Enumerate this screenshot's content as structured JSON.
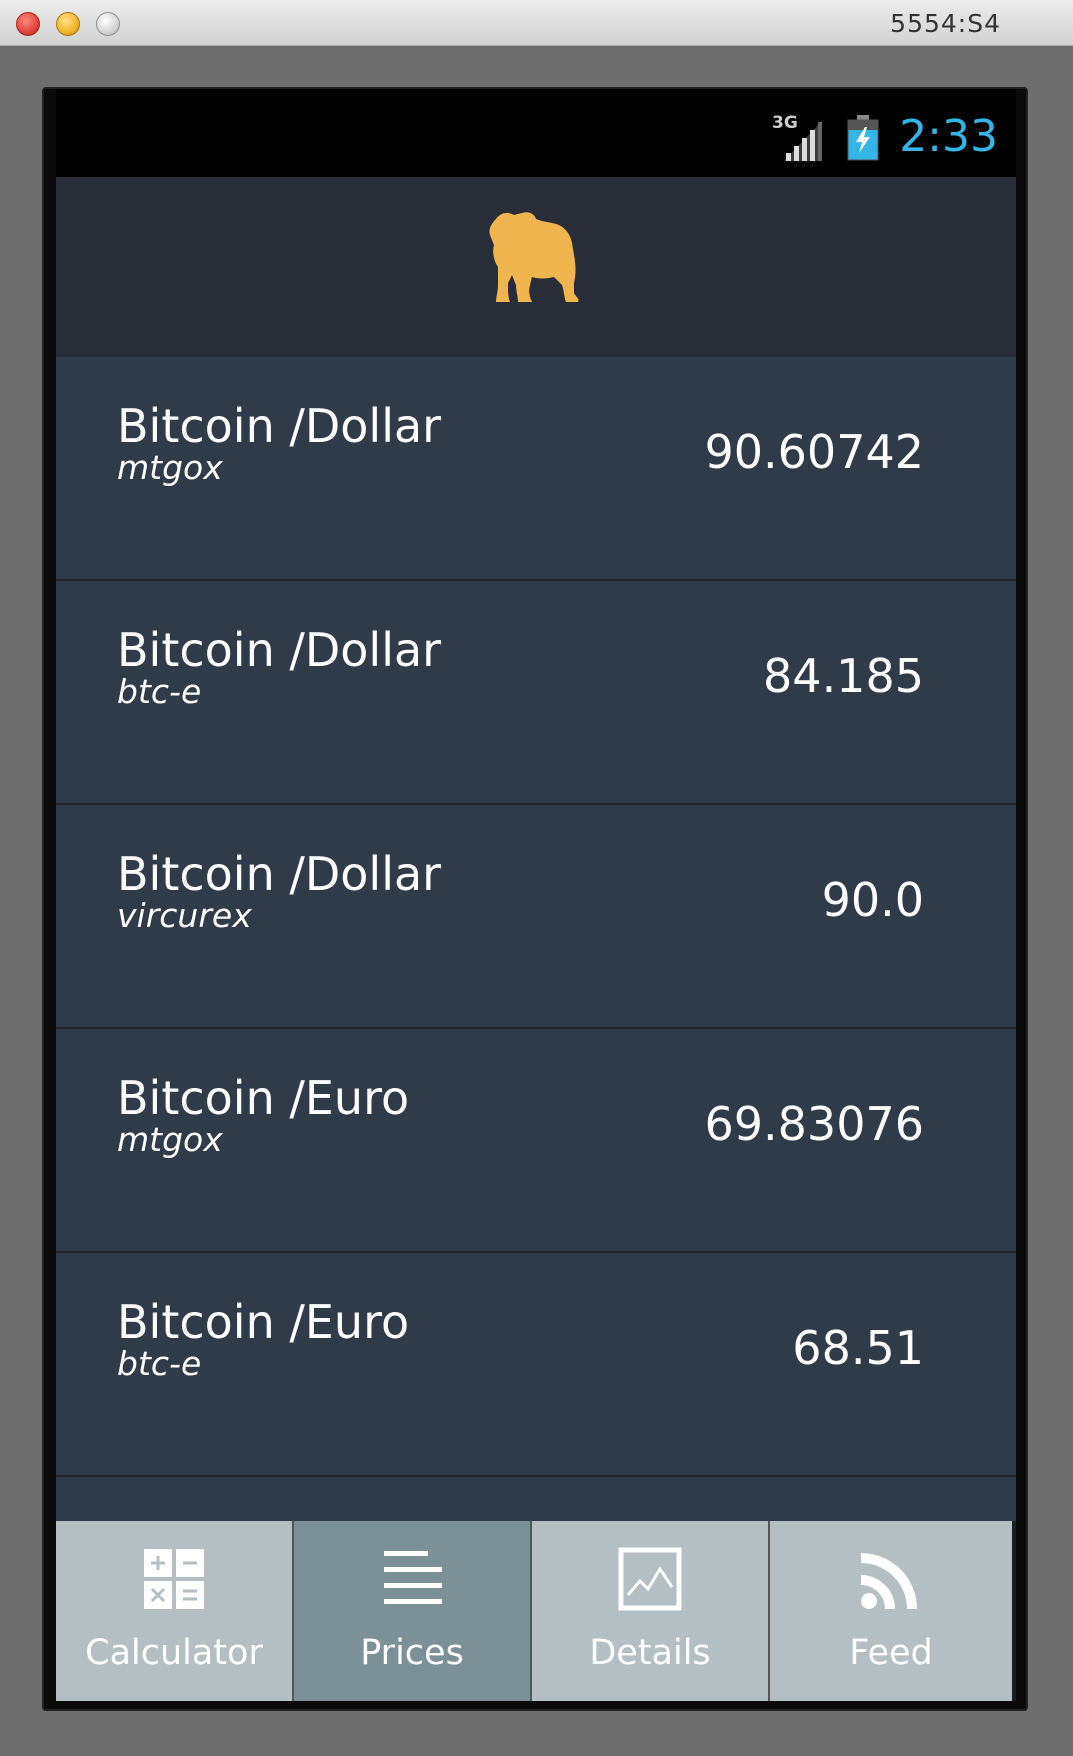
{
  "window": {
    "title": "5554:S4"
  },
  "status_bar": {
    "network": "3G",
    "clock": "2:33",
    "clock_color": "#33b5e5"
  },
  "action_bar": {
    "logo": "bulldog-icon",
    "logo_color": "#f0b54f"
  },
  "prices": [
    {
      "title": "Bitcoin /Dollar",
      "exchange": "mtgox",
      "price": "90.60742"
    },
    {
      "title": "Bitcoin /Dollar",
      "exchange": "btc-e",
      "price": "84.185"
    },
    {
      "title": "Bitcoin /Dollar",
      "exchange": "vircurex",
      "price": "90.0"
    },
    {
      "title": "Bitcoin /Euro",
      "exchange": "mtgox",
      "price": "69.83076"
    },
    {
      "title": "Bitcoin /Euro",
      "exchange": "btc-e",
      "price": "68.51"
    }
  ],
  "tabs": [
    {
      "label": "Calculator",
      "icon": "calculator-icon",
      "active": false
    },
    {
      "label": "Prices",
      "icon": "list-icon",
      "active": true
    },
    {
      "label": "Details",
      "icon": "chart-icon",
      "active": false
    },
    {
      "label": "Feed",
      "icon": "rss-icon",
      "active": false
    }
  ]
}
